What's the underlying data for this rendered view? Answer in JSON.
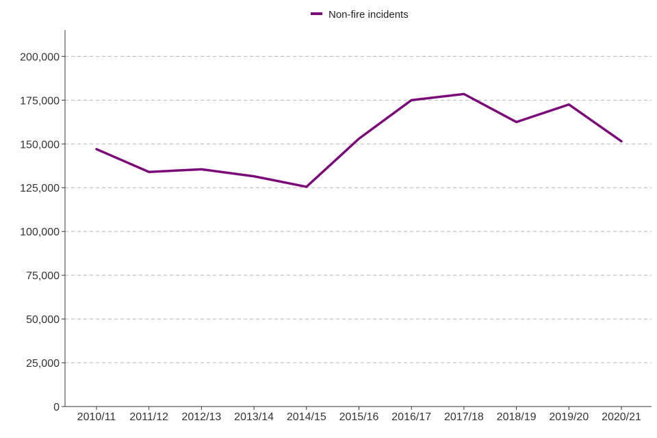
{
  "chart_data": {
    "type": "line",
    "categories": [
      "2010/11",
      "2011/12",
      "2012/13",
      "2013/14",
      "2014/15",
      "2015/16",
      "2016/17",
      "2017/18",
      "2018/19",
      "2019/20",
      "2020/21"
    ],
    "series": [
      {
        "name": "Non-fire incidents",
        "color": "#7b0a79",
        "values": [
          147000,
          134000,
          135500,
          131500,
          125500,
          153000,
          175000,
          178500,
          162500,
          172500,
          151500
        ]
      }
    ],
    "y_ticks": [
      "0",
      "25,000",
      "50,000",
      "75,000",
      "100,000",
      "125,000",
      "150,000",
      "175,000",
      "200,000"
    ],
    "ylim": [
      0,
      215000
    ],
    "grid": "horizontal-dashed",
    "legend_position": "top-center"
  }
}
